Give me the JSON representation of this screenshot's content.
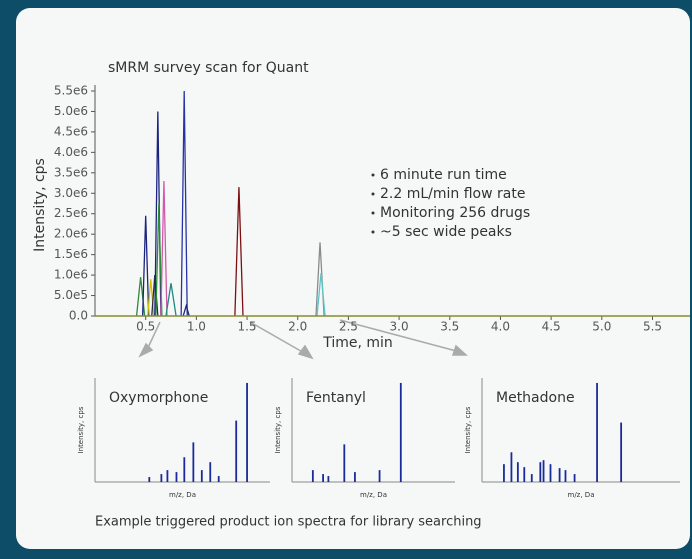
{
  "chart_data": [
    {
      "type": "line",
      "title": "sMRM survey scan for Quant",
      "x_label": "Time, min",
      "y_label": "Intensity, cps",
      "xlim": [
        0,
        5.87
      ],
      "ylim": [
        0,
        5500000
      ],
      "xticks": [
        0.5,
        {
          "value": 1,
          "label": "1.0"
        },
        1.5,
        {
          "value": 2,
          "label": "2.0"
        },
        2.5,
        {
          "value": 3,
          "label": "3.0"
        },
        3.5,
        {
          "value": 4,
          "label": "4.0"
        },
        4.5,
        {
          "value": 5,
          "label": "5.0"
        },
        5.5
      ],
      "yticks": [
        {
          "value": 0,
          "label": "0.0"
        },
        {
          "value": 500000,
          "label": "5.0e5"
        },
        {
          "value": 1000000,
          "label": "1.0e6"
        },
        {
          "value": 1500000,
          "label": "1.5e6"
        },
        {
          "value": 2000000,
          "label": "2.0e6"
        },
        {
          "value": 2500000,
          "label": "2.5e6"
        },
        {
          "value": 3000000,
          "label": "3.0e6"
        },
        {
          "value": 3500000,
          "label": "3.5e6"
        },
        {
          "value": 4000000,
          "label": "4.0e6"
        },
        {
          "value": 4500000,
          "label": "4.5e6"
        },
        {
          "value": 5000000,
          "label": "5.0e6"
        },
        {
          "value": 5500000,
          "label": "5.5e6"
        }
      ],
      "annotations": [
        "6 minute run time",
        "2.2 mL/min flow rate",
        "Monitoring 256 drugs",
        "~5 sec wide peaks"
      ],
      "series": [
        {
          "color": "#2e8b3a",
          "x": [
            0.41,
            0.45,
            0.49
          ],
          "values": [
            0,
            950000,
            0
          ]
        },
        {
          "color": "#1a237e",
          "x": [
            0.47,
            0.5,
            0.53
          ],
          "values": [
            0,
            2450000,
            0
          ]
        },
        {
          "color": "#d4c200",
          "x": [
            0.52,
            0.55,
            0.58
          ],
          "values": [
            0,
            900000,
            0
          ]
        },
        {
          "color": "#263238",
          "x": [
            0.56,
            0.59,
            0.62
          ],
          "values": [
            0,
            1000000,
            0
          ]
        },
        {
          "color": "#1a237e",
          "x": [
            0.59,
            0.62,
            0.65
          ],
          "values": [
            0,
            5000000,
            0
          ]
        },
        {
          "color": "#2e8b3a",
          "x": [
            0.6,
            0.63,
            0.66
          ],
          "values": [
            0,
            2750000,
            0
          ]
        },
        {
          "color": "#d05aa8",
          "x": [
            0.65,
            0.68,
            0.71
          ],
          "values": [
            0,
            3300000,
            0
          ]
        },
        {
          "color": "#1f8a80",
          "x": [
            0.7,
            0.75,
            0.8
          ],
          "values": [
            0,
            800000,
            0
          ]
        },
        {
          "color": "#2733a6",
          "x": [
            0.85,
            0.88,
            0.91
          ],
          "values": [
            0,
            5500000,
            0
          ]
        },
        {
          "color": "#1a237e",
          "x": [
            0.87,
            0.9,
            0.93
          ],
          "values": [
            0,
            250000,
            0
          ]
        },
        {
          "color": "#7b1010",
          "x": [
            1.38,
            1.42,
            1.46
          ],
          "values": [
            0,
            3150000,
            0
          ]
        },
        {
          "color": "#8a8a8a",
          "x": [
            2.18,
            2.22,
            2.26
          ],
          "values": [
            0,
            1800000,
            0
          ]
        },
        {
          "color": "#5ec4c8",
          "x": [
            2.19,
            2.23,
            2.27
          ],
          "values": [
            0,
            1050000,
            0
          ]
        }
      ]
    },
    {
      "type": "bar",
      "title": "Oxymorphone",
      "x_label": "m/z, Da",
      "y_label": "Intensity, cps",
      "color": "#1a2a9a",
      "xlim": [
        50,
        340
      ],
      "ylim": [
        0,
        105
      ],
      "x": [
        140,
        160,
        170,
        185,
        198,
        213,
        227,
        241,
        255,
        284,
        302
      ],
      "values": [
        5,
        8,
        12,
        10,
        25,
        40,
        12,
        20,
        6,
        62,
        100
      ]
    },
    {
      "type": "bar",
      "title": "Fentanyl",
      "x_label": "m/z, Da",
      "y_label": "Intensity, cps",
      "color": "#1a2a9a",
      "xlim": [
        50,
        480
      ],
      "ylim": [
        0,
        105
      ],
      "x": [
        105,
        132,
        146,
        188,
        216,
        281,
        337
      ],
      "values": [
        12,
        8,
        6,
        38,
        10,
        12,
        100
      ]
    },
    {
      "type": "bar",
      "title": "Methadone",
      "x_label": "m/z, Da",
      "y_label": "Intensity, cps",
      "color": "#1a2a9a",
      "xlim": [
        50,
        420
      ],
      "ylim": [
        0,
        105
      ],
      "x": [
        91,
        105,
        117,
        129,
        143,
        159,
        165,
        178,
        195,
        206,
        223,
        265,
        310
      ],
      "values": [
        18,
        30,
        20,
        15,
        8,
        20,
        22,
        18,
        14,
        12,
        8,
        100,
        60
      ]
    }
  ],
  "caption": "Example triggered product ion spectra for library searching"
}
